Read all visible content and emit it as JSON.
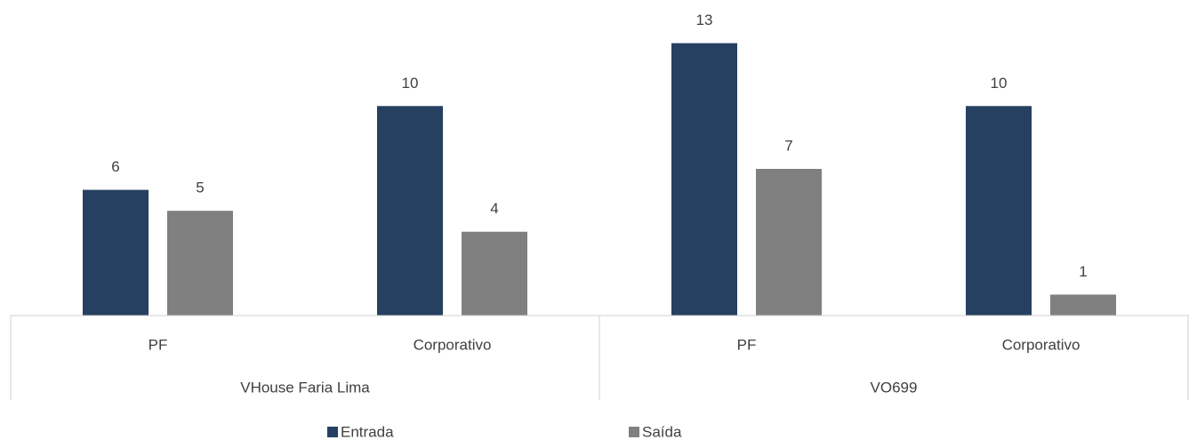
{
  "chart_data": {
    "type": "bar",
    "categories": [
      "PF",
      "Corporativo",
      "PF",
      "Corporativo"
    ],
    "groups": [
      "VHouse Faria Lima",
      "VO699"
    ],
    "series": [
      {
        "name": "Entrada",
        "color": "#264061",
        "values": [
          6,
          10,
          13,
          10
        ]
      },
      {
        "name": "Saída",
        "color": "#808080",
        "values": [
          5,
          4,
          7,
          1
        ]
      }
    ],
    "ylim": [
      0,
      14
    ],
    "legend": "bottom"
  }
}
